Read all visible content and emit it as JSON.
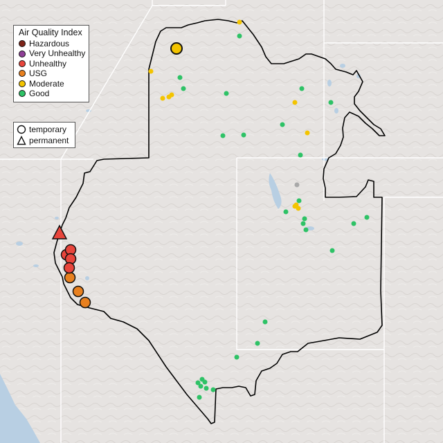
{
  "legend": {
    "title": "Air Quality Index",
    "categories": [
      {
        "label": "Hazardous",
        "color": "#7e2418"
      },
      {
        "label": "Very Unhealthy",
        "color": "#8f3f97"
      },
      {
        "label": "Unhealthy",
        "color": "#e8453c"
      },
      {
        "label": "USG",
        "color": "#e8801f"
      },
      {
        "label": "Moderate",
        "color": "#f3c400"
      },
      {
        "label": "Good",
        "color": "#2ec266"
      }
    ]
  },
  "monitor_types": {
    "items": [
      {
        "label": "temporary",
        "icon": "circle-icon"
      },
      {
        "label": "permanent",
        "icon": "triangle-icon"
      }
    ]
  },
  "map": {
    "background_color": "#e6e3e1",
    "water_color": "#b8cfe3",
    "boundary_color": "#000000",
    "state_line_color": "#ffffff"
  }
}
